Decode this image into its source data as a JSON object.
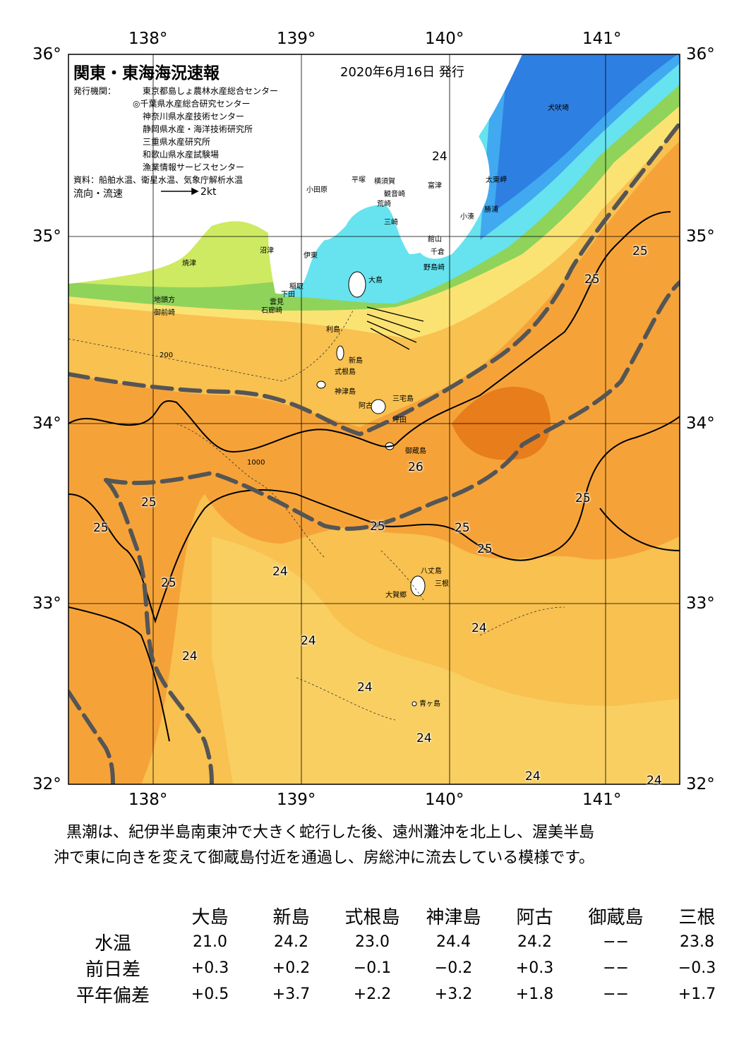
{
  "title": "関東・東海海況速報",
  "date": "2020年6月16日 発行",
  "issuer_label": "発行機関：",
  "issuers": [
    "東京都島しょ農林水産総合センター",
    "◎千葉県水産総合研究センター",
    "神奈川県水産技術センター",
    "静岡県水産・海洋技術研究所",
    "三重県水産研究所",
    "和歌山県水産試験場",
    "漁業情報サービスセンター"
  ],
  "source": "資料：船舶水温、衛星水温、気象庁解析水温",
  "flow_legend": {
    "label": "流向・流速",
    "value": "2kt"
  },
  "axes": {
    "lon_labels": [
      "138°",
      "139°",
      "140°",
      "141°"
    ],
    "lat_labels": [
      "36°",
      "35°",
      "34°",
      "33°",
      "32°"
    ],
    "lon_range": [
      137.5,
      141.5
    ],
    "lat_range": [
      32,
      36
    ]
  },
  "places": [
    {
      "name": "犬吠埼"
    },
    {
      "name": "太東岬"
    },
    {
      "name": "勝浦"
    },
    {
      "name": "小湊"
    },
    {
      "name": "富津"
    },
    {
      "name": "横須賀"
    },
    {
      "name": "観音崎"
    },
    {
      "name": "平塚"
    },
    {
      "name": "荒崎"
    },
    {
      "name": "小田原"
    },
    {
      "name": "三崎"
    },
    {
      "name": "館山"
    },
    {
      "name": "千倉"
    },
    {
      "name": "野島崎"
    },
    {
      "name": "沼津"
    },
    {
      "name": "伊東"
    },
    {
      "name": "焼津"
    },
    {
      "name": "大島"
    },
    {
      "name": "稲取"
    },
    {
      "name": "下田"
    },
    {
      "name": "雲見"
    },
    {
      "name": "石廊崎"
    },
    {
      "name": "地頭方"
    },
    {
      "name": "御前崎"
    },
    {
      "name": "利島"
    },
    {
      "name": "新島"
    },
    {
      "name": "式根島"
    },
    {
      "name": "神津島"
    },
    {
      "name": "三宅島"
    },
    {
      "name": "阿古"
    },
    {
      "name": "坪田"
    },
    {
      "name": "御蔵島"
    },
    {
      "name": "八丈島"
    },
    {
      "name": "三根"
    },
    {
      "name": "大賀郷"
    },
    {
      "name": "青ヶ島"
    }
  ],
  "contour_labels": [
    "24",
    "25",
    "25",
    "25",
    "25",
    "25",
    "25",
    "25",
    "25",
    "25",
    "26",
    "24",
    "24",
    "24",
    "24",
    "24",
    "24",
    "24",
    "24",
    "24"
  ],
  "depth_labels": [
    "1000",
    "200"
  ],
  "description": [
    "黒潮は、紀伊半島南東沖で大きく蛇行した後、遠州灘沖を北上し、渥美半島",
    "沖で東に向きを変えて御蔵島付近を通過し、房総沖に流去している模様です。"
  ],
  "table": {
    "columns": [
      "大島",
      "新島",
      "式根島",
      "神津島",
      "阿古",
      "御蔵島",
      "三根"
    ],
    "rows": [
      {
        "label": "水温",
        "values": [
          "21.0",
          "24.2",
          "23.0",
          "24.4",
          "24.2",
          "−−",
          "23.8"
        ]
      },
      {
        "label": "前日差",
        "values": [
          "+0.3",
          "+0.2",
          "−0.1",
          "−0.2",
          "+0.3",
          "−−",
          "−0.3"
        ]
      },
      {
        "label": "平年偏差",
        "values": [
          "+0.5",
          "+3.7",
          "+2.2",
          "+3.2",
          "+1.8",
          "−−",
          "+1.7"
        ]
      }
    ]
  },
  "colors": {
    "very_warm": "#e87d1c",
    "warm": "#f5a339",
    "mild": "#f8c150",
    "cool_mild": "#fbe373",
    "cool": "#cdea62",
    "green": "#8fd35a",
    "cyan": "#66e3ef",
    "blue": "#40a9f0",
    "deep_blue": "#2e7fe2",
    "land": "#ffffff",
    "kuroshio_axis": "#555555"
  }
}
